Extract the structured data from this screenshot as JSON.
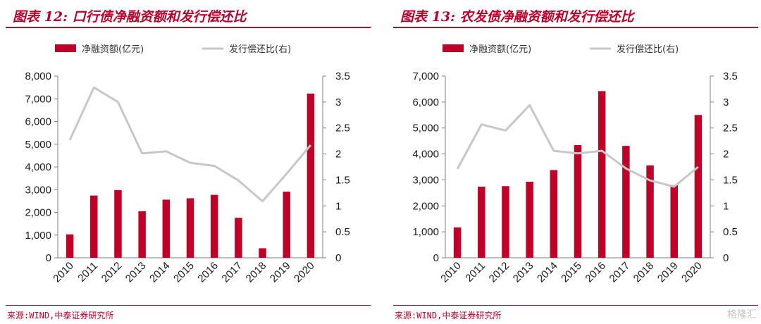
{
  "watermark": "格隆汇",
  "colors": {
    "bar": "#c00026",
    "line": "#c7c7c7",
    "accent": "#b8002b"
  },
  "chart_data": [
    {
      "type": "bar+line",
      "title": "图表 12:  口行债净融资额和发行偿还比",
      "source": "来源:WIND,中泰证券研究所",
      "categories": [
        "2010",
        "2011",
        "2012",
        "2013",
        "2014",
        "2015",
        "2016",
        "2017",
        "2018",
        "2019",
        "2020"
      ],
      "series": [
        {
          "name": "净融资额(亿元)",
          "kind": "bar",
          "axis": "left",
          "values": [
            1030,
            2740,
            2980,
            2050,
            2560,
            2620,
            2770,
            1760,
            420,
            2910,
            7230
          ]
        },
        {
          "name": "发行偿还比(右)",
          "kind": "line",
          "axis": "right",
          "values": [
            2.27,
            3.28,
            3.0,
            2.01,
            2.05,
            1.83,
            1.77,
            1.49,
            1.09,
            1.62,
            2.17
          ]
        }
      ],
      "ylim_left": [
        0,
        8000
      ],
      "yticks_left": [
        "0",
        "1,000",
        "2,000",
        "3,000",
        "4,000",
        "5,000",
        "6,000",
        "7,000",
        "8,000"
      ],
      "ylim_right": [
        0,
        3.5
      ],
      "yticks_right": [
        "0",
        "0.5",
        "1",
        "1.5",
        "2",
        "2.5",
        "3",
        "3.5"
      ],
      "legend_position": "top",
      "grid": false
    },
    {
      "type": "bar+line",
      "title": "图表 13:  农发债净融资额和发行偿还比",
      "source": "来源:WIND,中泰证券研究所",
      "categories": [
        "2010",
        "2011",
        "2012",
        "2013",
        "2014",
        "2015",
        "2016",
        "2017",
        "2018",
        "2019",
        "2020"
      ],
      "series": [
        {
          "name": "净融资额(亿元)",
          "kind": "bar",
          "axis": "left",
          "values": [
            1170,
            2740,
            2760,
            2930,
            3380,
            4340,
            6420,
            4310,
            3560,
            2800,
            5500
          ]
        },
        {
          "name": "发行偿还比(右)",
          "kind": "line",
          "axis": "right",
          "values": [
            1.71,
            2.57,
            2.45,
            2.94,
            2.06,
            2.01,
            2.06,
            1.72,
            1.49,
            1.37,
            1.75
          ]
        }
      ],
      "ylim_left": [
        0,
        7000
      ],
      "yticks_left": [
        "0",
        "1,000",
        "2,000",
        "3,000",
        "4,000",
        "5,000",
        "6,000",
        "7,000"
      ],
      "ylim_right": [
        0,
        3.5
      ],
      "yticks_right": [
        "0",
        "0.5",
        "1",
        "1.5",
        "2",
        "2.5",
        "3",
        "3.5"
      ],
      "legend_position": "top",
      "grid": false
    }
  ]
}
